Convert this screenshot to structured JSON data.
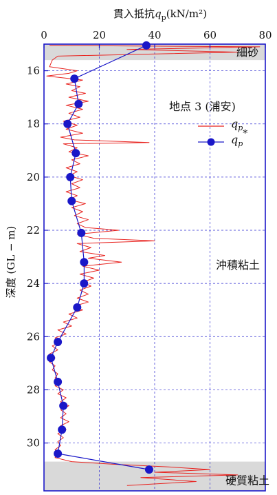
{
  "chart_data": {
    "type": "line",
    "title": "",
    "x_axis": {
      "label_prefix": "貫入抵抗",
      "label_symbol": "q",
      "label_sub": "p",
      "label_unit": "(kN/m²)",
      "range": [
        0,
        80
      ],
      "ticks": [
        "0",
        "20",
        "40",
        "60",
        "80"
      ],
      "position": "top"
    },
    "y_axis": {
      "label": "深度 (GL − m)",
      "range": [
        15,
        31.8
      ],
      "inverted": true,
      "ticks": [
        "16",
        "18",
        "20",
        "22",
        "24",
        "26",
        "28",
        "30"
      ]
    },
    "grid": true,
    "legend": {
      "title": "地点 3 (浦安)",
      "placement": "top-right",
      "entries": [
        {
          "symbol": "q",
          "sub": "p",
          "sup": "",
          "series": "qp"
        },
        {
          "symbol": "q",
          "sub": "p",
          "sup": "*",
          "series": "qp_star"
        }
      ]
    },
    "regions": [
      {
        "label": "細砂",
        "depth_range": [
          15,
          15.6
        ],
        "shaded": true
      },
      {
        "label": "沖積粘土",
        "depth_range": [
          15.6,
          30.7
        ],
        "shaded": false
      },
      {
        "label": "硬質粘土",
        "depth_range": [
          30.7,
          31.8
        ],
        "shaded": true
      }
    ],
    "series": [
      {
        "id": "qp",
        "color": "#e8231f",
        "style": "line",
        "points": [
          [
            2,
            15.05
          ],
          [
            78,
            15.1
          ],
          [
            30,
            15.2
          ],
          [
            70,
            15.3
          ],
          [
            5,
            15.45
          ],
          [
            3,
            15.6
          ],
          [
            2,
            15.85
          ],
          [
            12,
            16.0
          ],
          [
            9,
            16.1
          ],
          [
            1,
            16.2
          ],
          [
            14,
            16.35
          ],
          [
            8,
            16.5
          ],
          [
            13,
            16.6
          ],
          [
            10,
            16.75
          ],
          [
            15,
            16.85
          ],
          [
            9,
            17.0
          ],
          [
            16,
            17.15
          ],
          [
            8,
            17.3
          ],
          [
            14,
            17.45
          ],
          [
            9,
            17.6
          ],
          [
            13,
            17.75
          ],
          [
            7,
            17.9
          ],
          [
            12,
            18.05
          ],
          [
            8,
            18.2
          ],
          [
            14,
            18.35
          ],
          [
            6,
            18.5
          ],
          [
            11,
            18.6
          ],
          [
            38,
            18.7
          ],
          [
            7,
            18.75
          ],
          [
            12,
            18.9
          ],
          [
            9,
            19.05
          ],
          [
            16,
            19.2
          ],
          [
            10,
            19.35
          ],
          [
            13,
            19.5
          ],
          [
            8,
            19.65
          ],
          [
            12,
            19.8
          ],
          [
            9,
            19.95
          ],
          [
            14,
            20.1
          ],
          [
            10,
            20.25
          ],
          [
            13,
            20.4
          ],
          [
            8,
            20.55
          ],
          [
            12,
            20.7
          ],
          [
            9,
            20.85
          ],
          [
            15,
            21.0
          ],
          [
            10,
            21.15
          ],
          [
            14,
            21.3
          ],
          [
            11,
            21.45
          ],
          [
            16,
            21.6
          ],
          [
            12,
            21.75
          ],
          [
            15,
            21.9
          ],
          [
            27,
            22.0
          ],
          [
            12,
            22.15
          ],
          [
            18,
            22.3
          ],
          [
            40,
            22.4
          ],
          [
            12,
            22.5
          ],
          [
            17,
            22.65
          ],
          [
            13,
            22.8
          ],
          [
            22,
            22.95
          ],
          [
            16,
            23.05
          ],
          [
            28,
            23.2
          ],
          [
            14,
            23.35
          ],
          [
            20,
            23.5
          ],
          [
            13,
            23.65
          ],
          [
            18,
            23.8
          ],
          [
            14,
            23.95
          ],
          [
            17,
            24.1
          ],
          [
            13,
            24.25
          ],
          [
            16,
            24.4
          ],
          [
            12,
            24.55
          ],
          [
            16,
            24.7
          ],
          [
            11,
            24.85
          ],
          [
            14,
            25.0
          ],
          [
            9,
            25.15
          ],
          [
            12,
            25.3
          ],
          [
            7,
            25.45
          ],
          [
            10,
            25.6
          ],
          [
            5,
            25.75
          ],
          [
            8,
            25.9
          ],
          [
            4,
            26.05
          ],
          [
            6,
            26.2
          ],
          [
            3,
            26.35
          ],
          [
            5,
            26.5
          ],
          [
            2,
            26.65
          ],
          [
            4,
            26.8
          ],
          [
            2,
            26.95
          ],
          [
            4,
            27.1
          ],
          [
            3,
            27.25
          ],
          [
            5,
            27.4
          ],
          [
            4,
            27.55
          ],
          [
            6,
            27.7
          ],
          [
            4,
            27.85
          ],
          [
            7,
            28.0
          ],
          [
            5,
            28.15
          ],
          [
            8,
            28.3
          ],
          [
            6,
            28.45
          ],
          [
            9,
            28.6
          ],
          [
            6,
            28.75
          ],
          [
            8,
            28.9
          ],
          [
            6,
            29.05
          ],
          [
            9,
            29.2
          ],
          [
            6,
            29.35
          ],
          [
            8,
            29.5
          ],
          [
            5,
            29.65
          ],
          [
            7,
            29.8
          ],
          [
            5,
            29.95
          ],
          [
            6,
            30.1
          ],
          [
            4,
            30.25
          ],
          [
            5,
            30.4
          ],
          [
            4,
            30.55
          ],
          [
            10,
            30.7
          ],
          [
            25,
            30.8
          ],
          [
            45,
            30.9
          ],
          [
            60,
            31.0
          ],
          [
            40,
            31.1
          ],
          [
            70,
            31.2
          ],
          [
            35,
            31.3
          ],
          [
            55,
            31.45
          ],
          [
            30,
            31.6
          ]
        ]
      },
      {
        "id": "qp_star",
        "color": "#1a17c8",
        "style": "line-marker",
        "points": [
          [
            37,
            15.05
          ],
          [
            11,
            16.3
          ],
          [
            12.5,
            17.25
          ],
          [
            8.5,
            18.0
          ],
          [
            11.5,
            19.1
          ],
          [
            9.5,
            20.0
          ],
          [
            10,
            20.9
          ],
          [
            13.5,
            22.1
          ],
          [
            14.5,
            23.2
          ],
          [
            14.5,
            24.0
          ],
          [
            12,
            24.9
          ],
          [
            5,
            26.2
          ],
          [
            2.5,
            26.8
          ],
          [
            5,
            27.7
          ],
          [
            7,
            28.6
          ],
          [
            6.5,
            29.5
          ],
          [
            5,
            30.4
          ],
          [
            38,
            31.0
          ]
        ]
      }
    ]
  }
}
